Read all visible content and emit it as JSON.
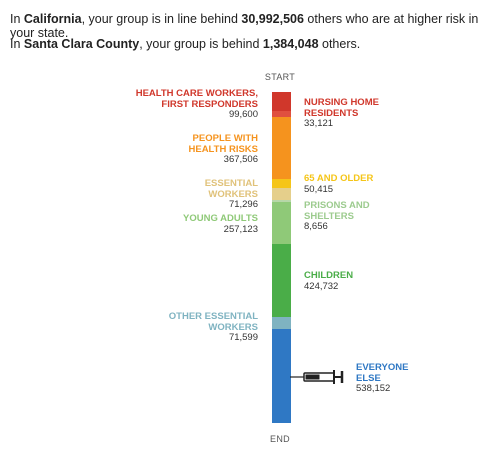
{
  "intro": {
    "state_prefix": "In ",
    "state": "California",
    "state_mid": ", your group is in line behind ",
    "state_count": "30,992,506",
    "state_suffix": " others who are at higher risk in your state.",
    "county_prefix": "In ",
    "county": "Santa Clara County",
    "county_mid": ", your group is behind ",
    "county_count": "1,384,048",
    "county_suffix": " others."
  },
  "start_label": "START",
  "end_label": "END",
  "groups": {
    "health": {
      "label1": "HEALTH CARE WORKERS,",
      "label2": "FIRST RESPONDERS",
      "value": "99,600",
      "color": "#d0372b"
    },
    "nursing": {
      "label1": "NURSING HOME",
      "label2": "RESIDENTS",
      "value": "33,121",
      "color": "#d0372b"
    },
    "risk": {
      "label1": "PEOPLE WITH",
      "label2": "HEALTH RISKS",
      "value": "367,506",
      "color": "#f5931e"
    },
    "older": {
      "label1": "65 AND OLDER",
      "value": "50,415",
      "color": "#f5c518"
    },
    "essential": {
      "label1": "ESSENTIAL",
      "label2": "WORKERS",
      "value": "71,296",
      "color": "#e5cf8b"
    },
    "prisons": {
      "label1": "PRISONS AND",
      "label2": "SHELTERS",
      "value": "8,656",
      "color": "#9ccb8e"
    },
    "young": {
      "label1": "YOUNG ADULTS",
      "value": "257,123",
      "color": "#8fc978"
    },
    "children": {
      "label1": "CHILDREN",
      "value": "424,732",
      "color": "#4aad48"
    },
    "other": {
      "label1": "OTHER ESSENTIAL",
      "label2": "WORKERS",
      "value": "71,599",
      "color": "#7fb3c1"
    },
    "everyone": {
      "label1": "EVERYONE",
      "label2": "ELSE",
      "value": "538,152",
      "color": "#2f78c4"
    }
  }
}
